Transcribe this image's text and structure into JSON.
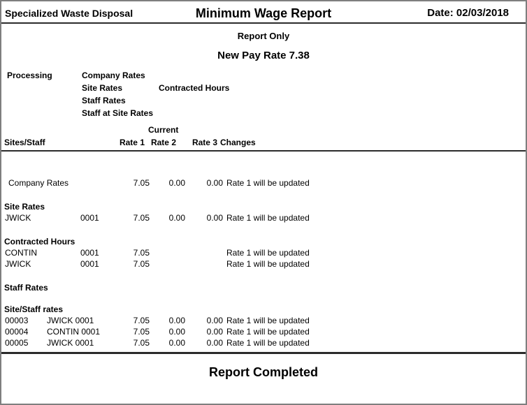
{
  "header": {
    "company": "Specialized Waste Disposal",
    "title": "Minimum Wage Report",
    "date": "Date: 02/03/2018"
  },
  "subtitles": {
    "report_only": "Report Only",
    "new_pay_rate": "New Pay Rate 7.38"
  },
  "processing": {
    "label": "Processing",
    "company_rates": "Company Rates",
    "site_rates": "Site Rates",
    "contracted_hours": "Contracted Hours",
    "staff_rates": "Staff Rates",
    "staff_at_site_rates": "Staff at Site Rates"
  },
  "table": {
    "current_label": "Current",
    "headers": {
      "sites_staff": "Sites/Staff",
      "rate1": "Rate 1",
      "rate2": "Rate 2",
      "rate3": "Rate 3",
      "changes": "Changes"
    },
    "rows": [
      {
        "name": "Company Rates",
        "code": "",
        "rate1": "7.05",
        "rate2": "0.00",
        "rate3": "0.00",
        "message": "Rate 1 will be updated"
      },
      {
        "section": "Site Rates"
      },
      {
        "name": "JWICK",
        "code": "0001",
        "rate1": "7.05",
        "rate2": "0.00",
        "rate3": "0.00",
        "message": "Rate 1 will be updated"
      },
      {
        "section": "Contracted Hours"
      },
      {
        "name": "CONTIN",
        "code": "0001",
        "rate1": "7.05",
        "rate2": "",
        "rate3": "",
        "message": "Rate 1 will be updated"
      },
      {
        "name": "JWICK",
        "code": "0001",
        "rate1": "7.05",
        "rate2": "",
        "rate3": "",
        "message": "Rate 1 will be updated"
      },
      {
        "section": "Staff Rates"
      },
      {
        "section": "Site/Staff rates"
      },
      {
        "name": "00003",
        "code": "JWICK 0001",
        "rate1": "7.05",
        "rate2": "0.00",
        "rate3": "0.00",
        "message": "Rate 1 will be updated"
      },
      {
        "name": "00004",
        "code": "CONTIN 0001",
        "rate1": "7.05",
        "rate2": "0.00",
        "rate3": "0.00",
        "message": "Rate 1 will be updated"
      },
      {
        "name": "00005",
        "code": "JWICK 0001",
        "rate1": "7.05",
        "rate2": "0.00",
        "rate3": "0.00",
        "message": "Rate 1 will be updated"
      }
    ]
  },
  "footer": {
    "completed": "Report Completed"
  },
  "colors": {
    "page_border": "#7f7f7f",
    "rule": "#2b2b2b",
    "text": "#000000",
    "background": "#ffffff"
  }
}
